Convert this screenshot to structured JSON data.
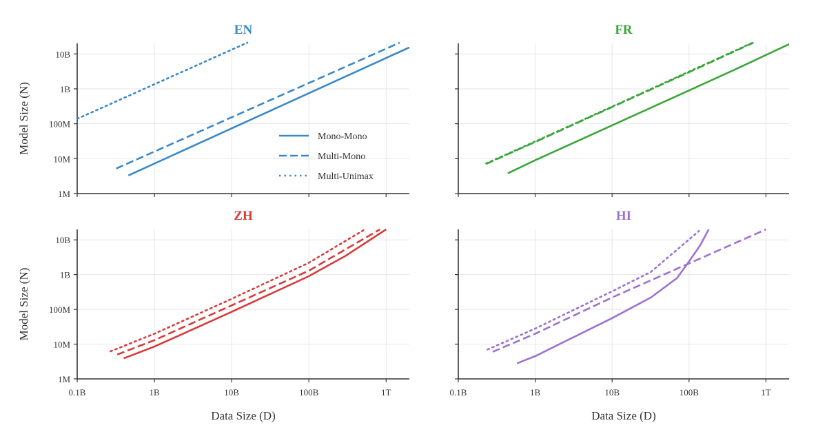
{
  "chart_data": [
    {
      "type": "line",
      "title": "EN",
      "color": "#3a88c8",
      "xlabel": "",
      "ylabel": "Model Size (N)",
      "xscale": "log",
      "yscale": "log",
      "xlim": [
        100000000.0,
        2000000000000.0
      ],
      "ylim": [
        1000000.0,
        20000000000.0
      ],
      "xticks": [
        100000000.0,
        1000000000.0,
        10000000000.0,
        100000000000.0,
        1000000000000.0
      ],
      "xticklabels": [],
      "yticks": [
        1000000.0,
        10000000.0,
        100000000.0,
        1000000000.0,
        10000000000.0
      ],
      "yticklabels": [
        "1M",
        "10M",
        "100M",
        "1B",
        "10B"
      ],
      "grid": true,
      "legend": "lower-right",
      "series": [
        {
          "name": "Mono-Mono",
          "style": "solid",
          "x": [
            460000000.0,
            2000000000000.0
          ],
          "y": [
            3300000.0,
            15400000000.0
          ]
        },
        {
          "name": "Multi-Mono",
          "style": "dashed",
          "x": [
            320000000.0,
            1500000000000.0
          ],
          "y": [
            5200000.0,
            21000000000.0
          ]
        },
        {
          "name": "Multi-Unimax",
          "style": "dotted",
          "x": [
            100000000.0,
            16000000000.0
          ],
          "y": [
            138000000.0,
            21000000000.0
          ]
        }
      ]
    },
    {
      "type": "line",
      "title": "FR",
      "color": "#3aa53a",
      "xlabel": "",
      "ylabel": "",
      "xscale": "log",
      "yscale": "log",
      "xlim": [
        100000000.0,
        2000000000000.0
      ],
      "ylim": [
        1000000.0,
        20000000000.0
      ],
      "xticks": [
        100000000.0,
        1000000000.0,
        10000000000.0,
        100000000000.0,
        1000000000000.0
      ],
      "xticklabels": [],
      "yticks": [
        1000000.0,
        10000000.0,
        100000000.0,
        1000000000.0,
        10000000000.0
      ],
      "yticklabels": [],
      "grid": true,
      "series": [
        {
          "name": "Mono-Mono",
          "style": "solid",
          "x": [
            440000000.0,
            1000000000.0,
            10000000000.0,
            100000000000.0,
            400000000000.0,
            2000000000000.0
          ],
          "y": [
            3800000.0,
            9000000.0,
            90000000.0,
            900000000.0,
            3600000000.0,
            19000000000.0
          ]
        },
        {
          "name": "Multi-Mono",
          "style": "dashed",
          "x": [
            230000000.0,
            1000000000.0,
            10000000000.0,
            100000000000.0,
            690000000000.0
          ],
          "y": [
            7100000.0,
            30000000.0,
            300000000.0,
            3000000000.0,
            21000000000.0
          ]
        },
        {
          "name": "Multi-Unimax",
          "style": "dotted",
          "x": [
            230000000.0,
            1000000000.0,
            10000000000.0,
            100000000000.0,
            670000000000.0
          ],
          "y": [
            7300000.0,
            31000000.0,
            310000000.0,
            3100000000.0,
            21000000000.0
          ]
        }
      ]
    },
    {
      "type": "line",
      "title": "ZH",
      "color": "#d93a3a",
      "xlabel": "Data Size (D)",
      "ylabel": "Model Size (N)",
      "xscale": "log",
      "yscale": "log",
      "xlim": [
        100000000.0,
        2000000000000.0
      ],
      "ylim": [
        1000000.0,
        20000000000.0
      ],
      "xticks": [
        100000000.0,
        1000000000.0,
        10000000000.0,
        100000000000.0,
        1000000000000.0
      ],
      "xticklabels": [
        "0.1B",
        "1B",
        "10B",
        "100B",
        "1T"
      ],
      "yticks": [
        1000000.0,
        10000000.0,
        100000000.0,
        1000000000.0,
        10000000000.0
      ],
      "yticklabels": [
        "1M",
        "10M",
        "100M",
        "1B",
        "10B"
      ],
      "grid": true,
      "series": [
        {
          "name": "Mono-Mono",
          "style": "solid",
          "x": [
            400000000.0,
            1000000000.0,
            10000000000.0,
            100000000000.0,
            300000000000.0,
            1000000000000.0
          ],
          "y": [
            3900000.0,
            8500000.0,
            85000000.0,
            900000000.0,
            3500000000.0,
            20000000000.0
          ]
        },
        {
          "name": "Multi-Mono",
          "style": "dashed",
          "x": [
            330000000.0,
            1000000000.0,
            10000000000.0,
            100000000000.0,
            830000000000.0
          ],
          "y": [
            5000000.0,
            13000000.0,
            130000000.0,
            1300000000.0,
            20000000000.0
          ]
        },
        {
          "name": "Multi-Unimax",
          "style": "dotted",
          "x": [
            270000000.0,
            1000000000.0,
            10000000000.0,
            100000000000.0,
            530000000000.0
          ],
          "y": [
            6200000.0,
            20000000.0,
            200000000.0,
            2200000000.0,
            20000000000.0
          ]
        }
      ]
    },
    {
      "type": "line",
      "title": "HI",
      "color": "#9b72cf",
      "xlabel": "Data Size (D)",
      "ylabel": "",
      "xscale": "log",
      "yscale": "log",
      "xlim": [
        100000000.0,
        2000000000000.0
      ],
      "ylim": [
        1000000.0,
        20000000000.0
      ],
      "xticks": [
        100000000.0,
        1000000000.0,
        10000000000.0,
        100000000000.0,
        1000000000000.0
      ],
      "xticklabels": [
        "0.1B",
        "1B",
        "10B",
        "100B",
        "1T"
      ],
      "yticks": [
        1000000.0,
        10000000.0,
        100000000.0,
        1000000000.0,
        10000000000.0
      ],
      "yticklabels": [],
      "grid": true,
      "series": [
        {
          "name": "Mono-Mono",
          "style": "solid",
          "x": [
            580000000.0,
            1000000000.0,
            10000000000.0,
            32000000000.0,
            70000000000.0,
            100000000000.0,
            140000000000.0,
            180000000000.0
          ],
          "y": [
            2800000.0,
            4500000.0,
            56000000.0,
            220000000.0,
            800000000.0,
            2400000000.0,
            7000000000.0,
            20000000000.0
          ]
        },
        {
          "name": "Multi-Mono",
          "style": "dashed",
          "x": [
            280000000.0,
            1000000000.0,
            10000000000.0,
            100000000000.0,
            1000000000000.0
          ],
          "y": [
            6000000.0,
            20000000.0,
            220000000.0,
            2100000000.0,
            20000000000.0
          ]
        },
        {
          "name": "Multi-Unimax",
          "style": "dotted",
          "x": [
            240000000.0,
            1000000000.0,
            10000000000.0,
            32000000000.0,
            135000000000.0
          ],
          "y": [
            7000000.0,
            28000000.0,
            330000000.0,
            1200000000.0,
            18000000000.0
          ]
        }
      ]
    }
  ]
}
